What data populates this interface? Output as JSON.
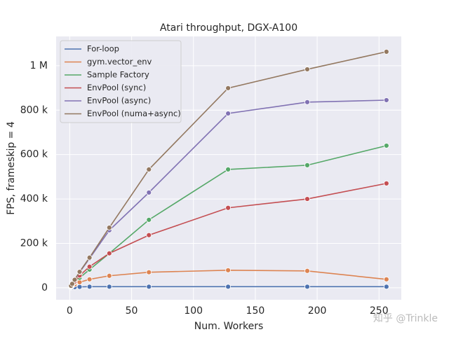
{
  "chart_data": {
    "type": "line",
    "title": "Atari throughput, DGX-A100",
    "xlabel": "Num. Workers",
    "ylabel": "FPS, frameskip = 4",
    "x": [
      1,
      2,
      4,
      8,
      16,
      32,
      64,
      128,
      192,
      256
    ],
    "series": [
      {
        "name": "For-loop",
        "color": "#4c72b0",
        "values": [
          1000,
          2000,
          3000,
          4000,
          5000,
          5000,
          5000,
          5000,
          5000,
          5000
        ]
      },
      {
        "name": "gym.vector_env",
        "color": "#dd8452",
        "values": [
          4000,
          8000,
          15000,
          25000,
          38000,
          54000,
          70000,
          79000,
          76000,
          38000
        ]
      },
      {
        "name": "Sample Factory",
        "color": "#55a868",
        "values": [
          6000,
          12000,
          25000,
          45000,
          82000,
          155000,
          306000,
          533000,
          552000,
          640000
        ]
      },
      {
        "name": "EnvPool (sync)",
        "color": "#c44e52",
        "values": [
          7000,
          14000,
          28000,
          55000,
          95000,
          155000,
          237000,
          360000,
          400000,
          470000
        ]
      },
      {
        "name": "EnvPool (async)",
        "color": "#8172b3",
        "values": [
          9000,
          18000,
          35000,
          70000,
          132000,
          259000,
          429000,
          785000,
          836000,
          845000
        ]
      },
      {
        "name": "EnvPool (numa+async)",
        "color": "#937860",
        "values": [
          9000,
          18000,
          36000,
          72000,
          136000,
          271000,
          533000,
          899000,
          984000,
          1063000
        ]
      }
    ],
    "xlim": [
      -11,
      268
    ],
    "ylim": [
      -54000,
      1132000
    ],
    "xticks": [
      0,
      50,
      100,
      150,
      200,
      250
    ],
    "yticks": [
      0,
      {
        "value": 200000,
        "label": "200 k"
      },
      {
        "value": 400000,
        "label": "400 k"
      },
      {
        "value": 600000,
        "label": "600 k"
      },
      {
        "value": 800000,
        "label": "800 k"
      },
      {
        "value": 1000000,
        "label": "1 M"
      }
    ],
    "grid": true,
    "legend": "upper left",
    "watermark": "知乎 @Trinkle"
  }
}
